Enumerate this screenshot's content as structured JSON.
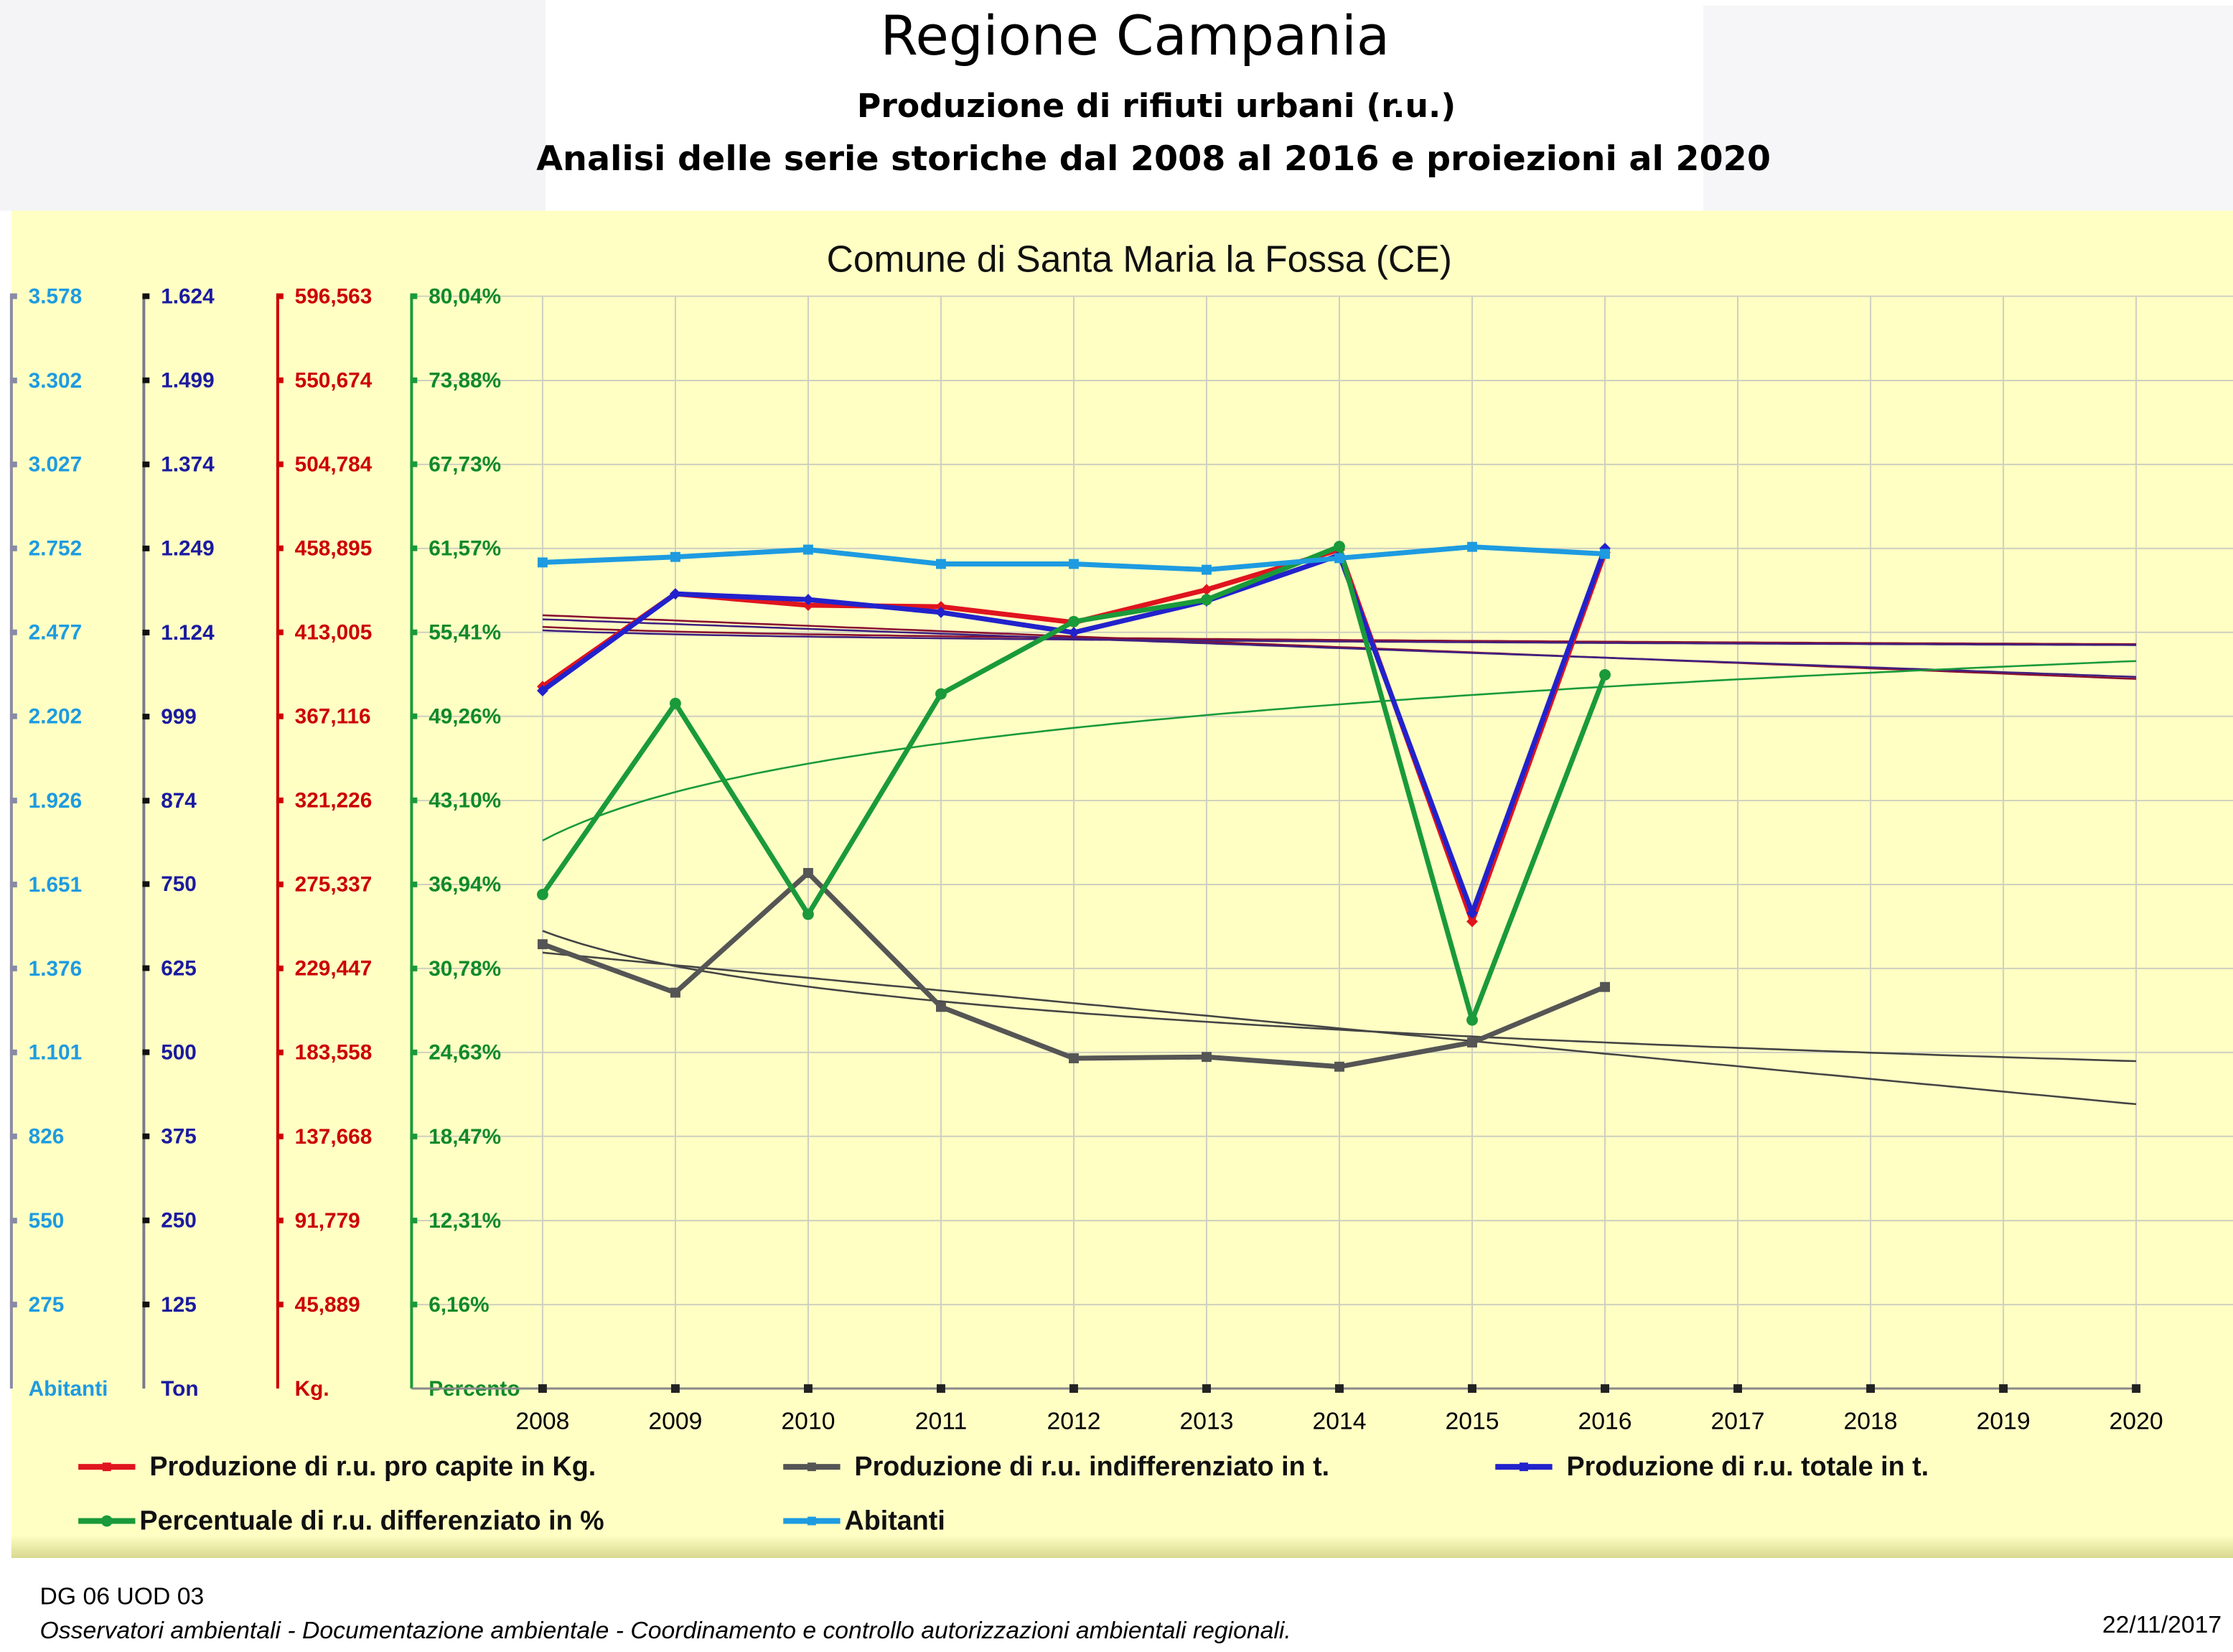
{
  "header": {
    "title": "Regione Campania",
    "subtitle": "Produzione di rifiuti urbani (r.u.)",
    "subtitle2": "Analisi delle serie storiche dal 2008 al 2016 e proiezioni al 2020"
  },
  "footer": {
    "office": "DG 06 UOD 03",
    "note": "Osservatori ambientali -  Documentazione ambientale -  Coordinamento e controllo autorizzazioni ambientali regionali.",
    "date": "22/11/2017"
  },
  "chart_data": {
    "type": "line",
    "title": "Comune di Santa Maria la Fossa (CE)",
    "x": [
      2008,
      2009,
      2010,
      2011,
      2012,
      2013,
      2014,
      2015,
      2016,
      2017,
      2018,
      2019,
      2020
    ],
    "xlim": [
      2008,
      2020
    ],
    "xticks": [
      2008,
      2009,
      2010,
      2011,
      2012,
      2013,
      2014,
      2015,
      2016,
      2017,
      2018,
      2019,
      2020
    ],
    "grid": true,
    "axes": [
      {
        "label": "Abitanti",
        "color": "#1e9be0",
        "line_color": "#8a8aa6",
        "ylim": [
          0,
          3578
        ],
        "yticks": [
          275,
          550,
          826,
          {
            "value": 1101,
            "label": "1.101"
          },
          {
            "value": 1376,
            "label": "1.376"
          },
          {
            "value": 1651,
            "label": "1.651"
          },
          {
            "value": 1926,
            "label": "1.926"
          },
          {
            "value": 2202,
            "label": "2.202"
          },
          {
            "value": 2477,
            "label": "2.477"
          },
          {
            "value": 2752,
            "label": "2.752"
          },
          {
            "value": 3027,
            "label": "3.027"
          },
          {
            "value": 3302,
            "label": "3.302"
          },
          {
            "value": 3578,
            "label": "3.578"
          }
        ]
      },
      {
        "label": "Ton",
        "color": "#1a1aa0",
        "line_color": "#7a7a8a",
        "ylim": [
          0,
          1624
        ],
        "yticks": [
          125,
          250,
          375,
          500,
          625,
          750,
          874,
          999,
          {
            "value": 1124,
            "label": "1.124"
          },
          {
            "value": 1249,
            "label": "1.249"
          },
          {
            "value": 1374,
            "label": "1.374"
          },
          {
            "value": 1499,
            "label": "1.499"
          },
          {
            "value": 1624,
            "label": "1.624"
          }
        ]
      },
      {
        "label": "Kg.",
        "color": "#cc0000",
        "line_color": "#cc0000",
        "ylim": [
          0,
          596.563
        ],
        "yticks": [
          {
            "value": 45.889,
            "label": "45,889"
          },
          {
            "value": 91.779,
            "label": "91,779"
          },
          {
            "value": 137.668,
            "label": "137,668"
          },
          {
            "value": 183.558,
            "label": "183,558"
          },
          {
            "value": 229.447,
            "label": "229,447"
          },
          {
            "value": 275.337,
            "label": "275,337"
          },
          {
            "value": 321.226,
            "label": "321,226"
          },
          {
            "value": 367.116,
            "label": "367,116"
          },
          {
            "value": 413.005,
            "label": "413,005"
          },
          {
            "value": 458.895,
            "label": "458,895"
          },
          {
            "value": 504.784,
            "label": "504,784"
          },
          {
            "value": 550.674,
            "label": "550,674"
          },
          {
            "value": 596.563,
            "label": "596,563"
          }
        ]
      },
      {
        "label": "Percento",
        "color": "#108a2a",
        "line_color": "#1a9a3a",
        "ylim": [
          0,
          80.04
        ],
        "yticks": [
          {
            "value": 6.16,
            "label": "6,16%"
          },
          {
            "value": 12.31,
            "label": "12,31%"
          },
          {
            "value": 18.47,
            "label": "18,47%"
          },
          {
            "value": 24.63,
            "label": "24,63%"
          },
          {
            "value": 30.78,
            "label": "30,78%"
          },
          {
            "value": 36.94,
            "label": "36,94%"
          },
          {
            "value": 43.1,
            "label": "43,10%"
          },
          {
            "value": 49.26,
            "label": "49,26%"
          },
          {
            "value": 55.41,
            "label": "55,41%"
          },
          {
            "value": 61.57,
            "label": "61,57%"
          },
          {
            "value": 67.73,
            "label": "67,73%"
          },
          {
            "value": 73.88,
            "label": "73,88%"
          },
          {
            "value": 80.04,
            "label": "80,04%"
          }
        ]
      }
    ],
    "series": [
      {
        "name": "Produzione di r.u. pro capite in Kg.",
        "color": "#e0141e",
        "axis": 2,
        "marker": "diamond",
        "values": [
          383.4,
          434.0,
          427.8,
          427.0,
          418.4,
          436.3,
          458.1,
          255.1,
          456.6,
          null,
          null,
          null,
          null
        ]
      },
      {
        "name": "Produzione di r.u. indifferenziato in t.",
        "color": "#555555",
        "axis": 1,
        "marker": "square",
        "values": [
          660.6,
          588.6,
          766.5,
          567.4,
          491.0,
          493.0,
          478.5,
          514.5,
          597.0,
          null,
          null,
          null,
          null
        ]
      },
      {
        "name": "Produzione di r.u. totale in t.",
        "color": "#2222cc",
        "axis": 1,
        "marker": "diamond",
        "values": [
          1037.5,
          1181.5,
          1173.0,
          1154.0,
          1124.0,
          1171.0,
          1239.0,
          707.0,
          1249.0,
          null,
          null,
          null,
          null
        ]
      },
      {
        "name": "Percentuale di r.u. differenziato in %",
        "color": "#1a9a3a",
        "axis": 3,
        "marker": "circle",
        "values": [
          36.2,
          50.2,
          34.75,
          50.9,
          56.2,
          57.8,
          61.7,
          27.0,
          52.3,
          null,
          null,
          null,
          null
        ]
      },
      {
        "name": "Abitanti",
        "color": "#1e9be0",
        "axis": 0,
        "marker": "square",
        "values": [
          2706,
          2724,
          2748,
          2701,
          2701,
          2682,
          2720,
          2757,
          2734,
          null,
          null,
          null,
          null
        ]
      }
    ]
  }
}
